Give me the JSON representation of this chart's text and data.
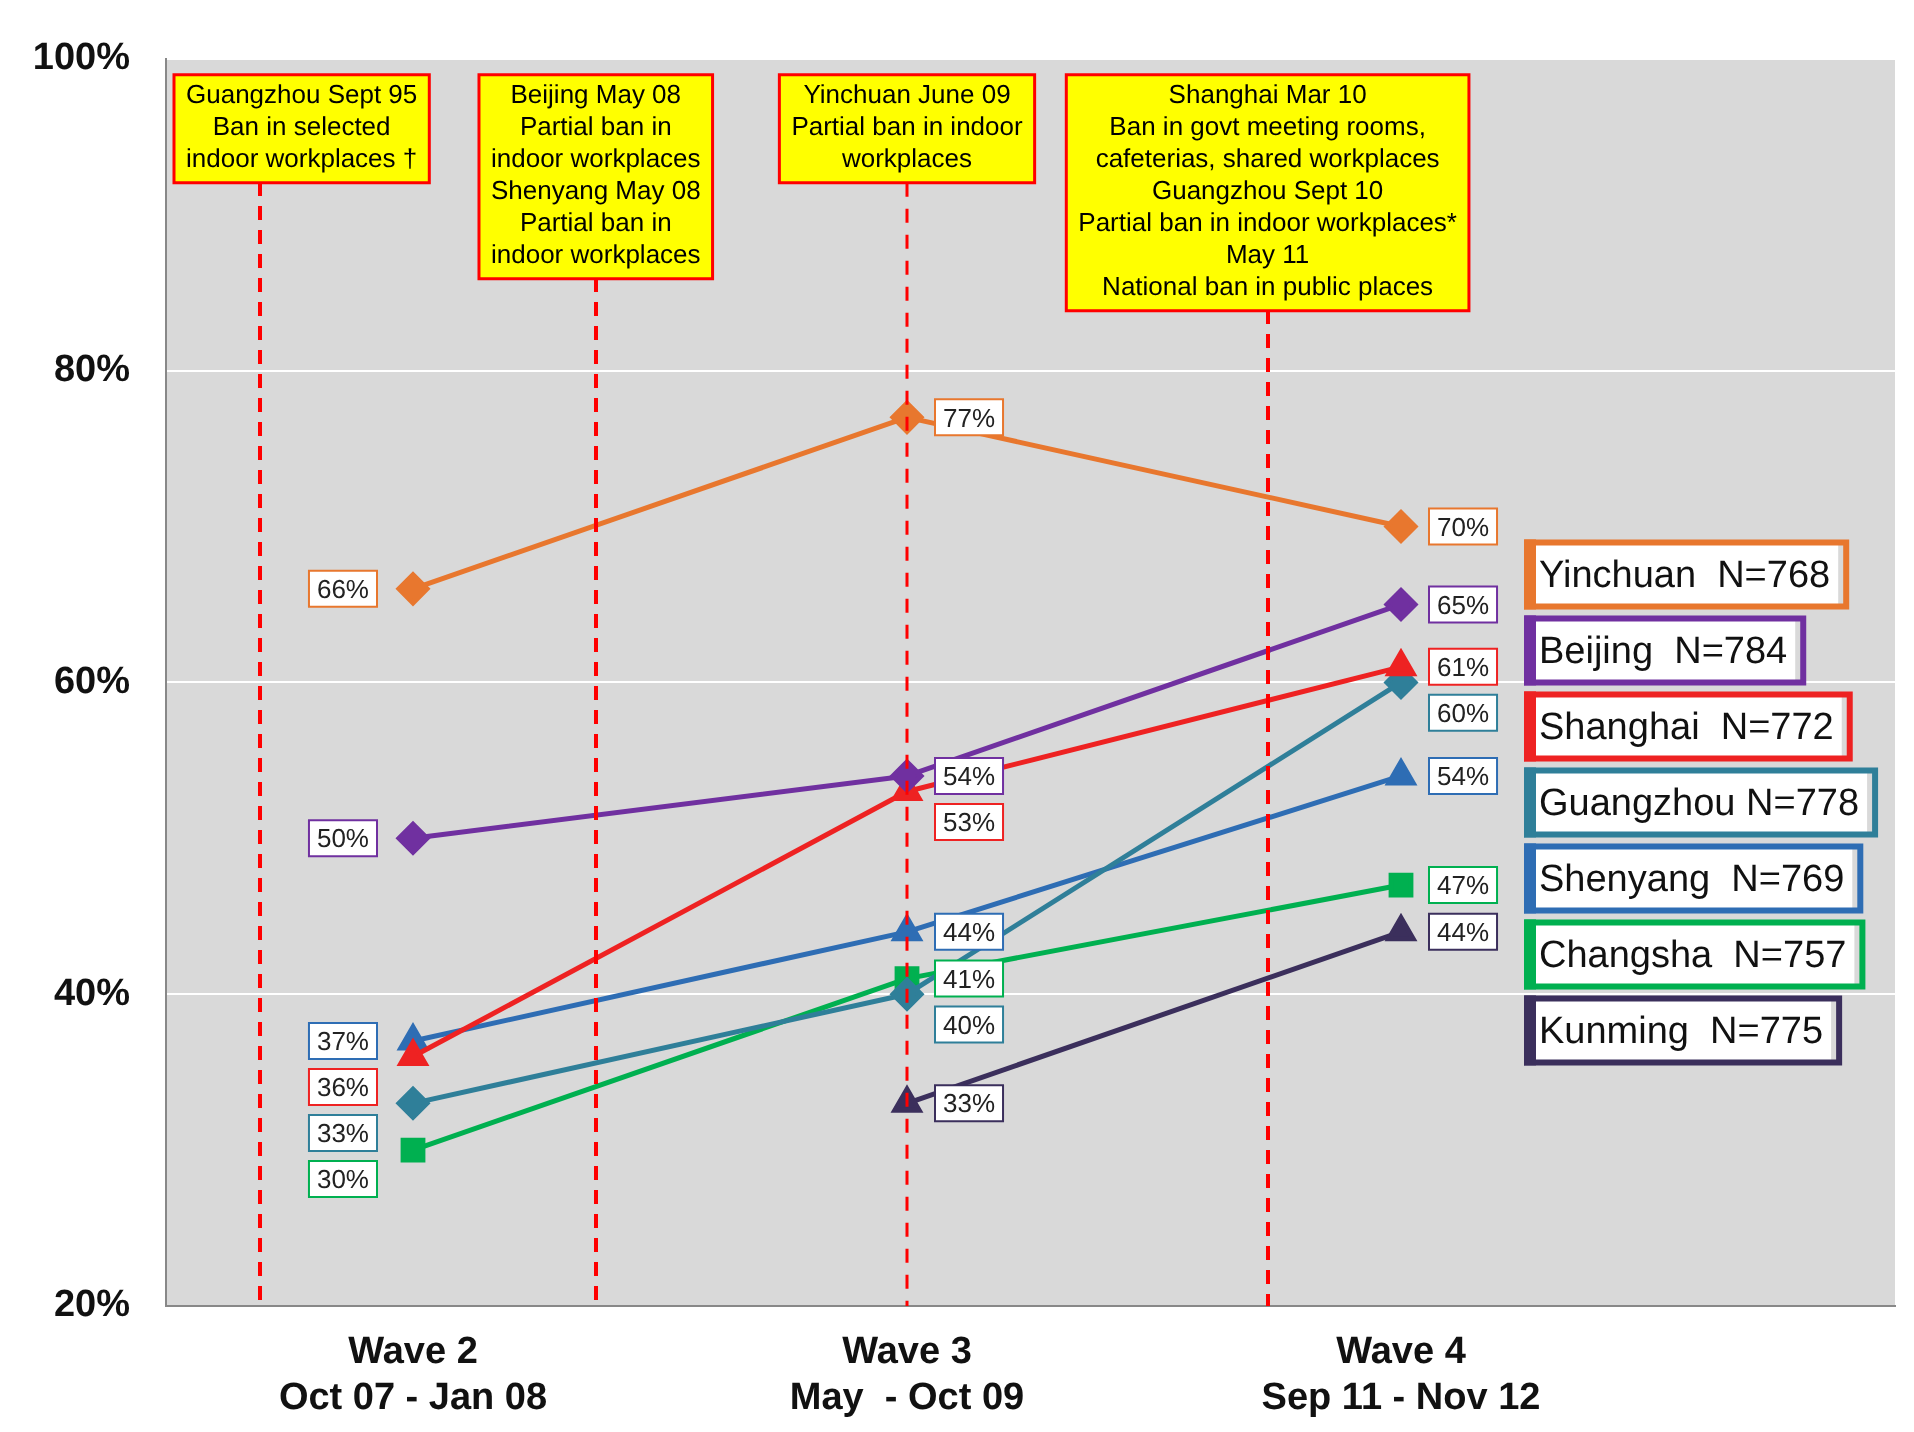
{
  "chart_data": {
    "type": "line",
    "categories": [
      "Wave 2\nOct 07 - Jan 08",
      "Wave 3\nMay  - Oct 09",
      "Wave 4\nSep 11 - Nov 12"
    ],
    "ylim": [
      20,
      100
    ],
    "yticks": [
      {
        "value": 20,
        "label": "20%"
      },
      {
        "value": 40,
        "label": "40%"
      },
      {
        "value": 60,
        "label": "60%"
      },
      {
        "value": 80,
        "label": "80%"
      },
      {
        "value": 100,
        "label": "100%"
      }
    ],
    "grid": "y",
    "legend": "right",
    "series": [
      {
        "name": "Yinchuan  N=768",
        "color": "#e8772e",
        "marker": "diamond",
        "values": [
          66,
          77,
          70
        ],
        "value_labels": [
          "66%",
          "77%",
          "70%"
        ]
      },
      {
        "name": "Beijing  N=784",
        "color": "#7030a0",
        "marker": "diamond",
        "values": [
          50,
          54,
          65
        ],
        "value_labels": [
          "50%",
          "54%",
          "65%"
        ]
      },
      {
        "name": "Shanghai  N=772",
        "color": "#ee2222",
        "marker": "triangle",
        "values": [
          36,
          53,
          61
        ],
        "value_labels": [
          "36%",
          "53%",
          "61%"
        ]
      },
      {
        "name": "Guangzhou N=778",
        "color": "#2f7f99",
        "marker": "diamond",
        "values": [
          33,
          40,
          60
        ],
        "value_labels": [
          "33%",
          "40%",
          "60%"
        ]
      },
      {
        "name": "Shenyang  N=769",
        "color": "#2e6db4",
        "marker": "triangle",
        "values": [
          37,
          44,
          54
        ],
        "value_labels": [
          "37%",
          "44%",
          "54%"
        ]
      },
      {
        "name": "Changsha  N=757",
        "color": "#00b050",
        "marker": "square",
        "values": [
          30,
          41,
          47
        ],
        "value_labels": [
          "30%",
          "41%",
          "47%"
        ]
      },
      {
        "name": "Kunming  N=775",
        "color": "#3b2f5c",
        "marker": "triangle",
        "values": [
          null,
          33,
          44
        ],
        "value_labels": [
          null,
          "33%",
          "44%"
        ]
      }
    ],
    "ref_lines": [
      {
        "axis": "x",
        "value": "Wave 3\nMay  - Oct 09",
        "label": "Yinchuan June 09\nPartial ban in indoor\nworkplaces",
        "color": "#ff0000",
        "line_style": "dashed"
      }
    ],
    "annotations": [
      "Guangzhou Sept 95\nBan in selected\nindoor workplaces †",
      "Beijing May 08\nPartial ban in\nindoor workplaces\nShenyang May 08\nPartial ban in\nindoor workplaces",
      "Shanghai Mar 10\nBan in govt meeting rooms,\ncafeterias, shared workplaces\nGuangzhou Sept 10\nPartial ban in indoor workplaces*\nMay 11\nNational ban in public places"
    ]
  }
}
